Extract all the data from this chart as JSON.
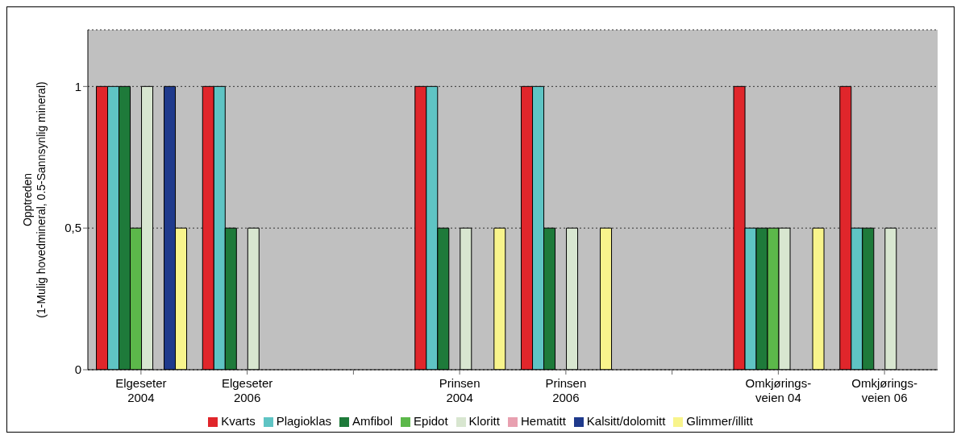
{
  "chart_data": {
    "type": "bar",
    "ylabel": "Opptreden\n(1-Mulig hovedmineral, 0.5-Sannsynlig mineral)",
    "categories": [
      "Elgeseter\n2004",
      "Elgeseter\n2006",
      null,
      "Prinsen\n2004",
      "Prinsen\n2006",
      null,
      "Omkjørings-\nveien 04",
      "Omkjørings-\nveien 06"
    ],
    "series": [
      {
        "name": "Kvarts",
        "color": "#e0262b",
        "values": [
          1,
          1,
          null,
          1,
          1,
          null,
          1,
          1
        ]
      },
      {
        "name": "Plagioklas",
        "color": "#5fc4c4",
        "values": [
          1,
          1,
          null,
          1,
          1,
          null,
          0.5,
          0.5
        ]
      },
      {
        "name": "Amfibol",
        "color": "#1e7a3a",
        "values": [
          1,
          0.5,
          null,
          0.5,
          0.5,
          null,
          0.5,
          0.5
        ]
      },
      {
        "name": "Epidot",
        "color": "#5cb84a",
        "values": [
          0.5,
          0,
          null,
          0,
          0,
          null,
          0.5,
          0
        ]
      },
      {
        "name": "Kloritt",
        "color": "#d8e6d0",
        "values": [
          1,
          0.5,
          null,
          0.5,
          0.5,
          null,
          0.5,
          0.5
        ]
      },
      {
        "name": "Hematitt",
        "color": "#e8a0b0",
        "values": [
          0,
          0,
          null,
          0,
          0,
          null,
          0,
          0
        ]
      },
      {
        "name": "Kalsitt/dolomitt",
        "color": "#1f3a8c",
        "values": [
          1,
          0,
          null,
          0,
          0,
          null,
          0,
          0
        ]
      },
      {
        "name": "Glimmer/illitt",
        "color": "#f8f48c",
        "values": [
          0.5,
          0,
          null,
          0.5,
          0.5,
          null,
          0.5,
          0
        ]
      }
    ],
    "ylim": [
      0,
      1.2
    ],
    "yticks": [
      0,
      {
        "value": 0.5,
        "label": "0,5"
      },
      1
    ],
    "grid": "y",
    "legend": "bottom"
  }
}
